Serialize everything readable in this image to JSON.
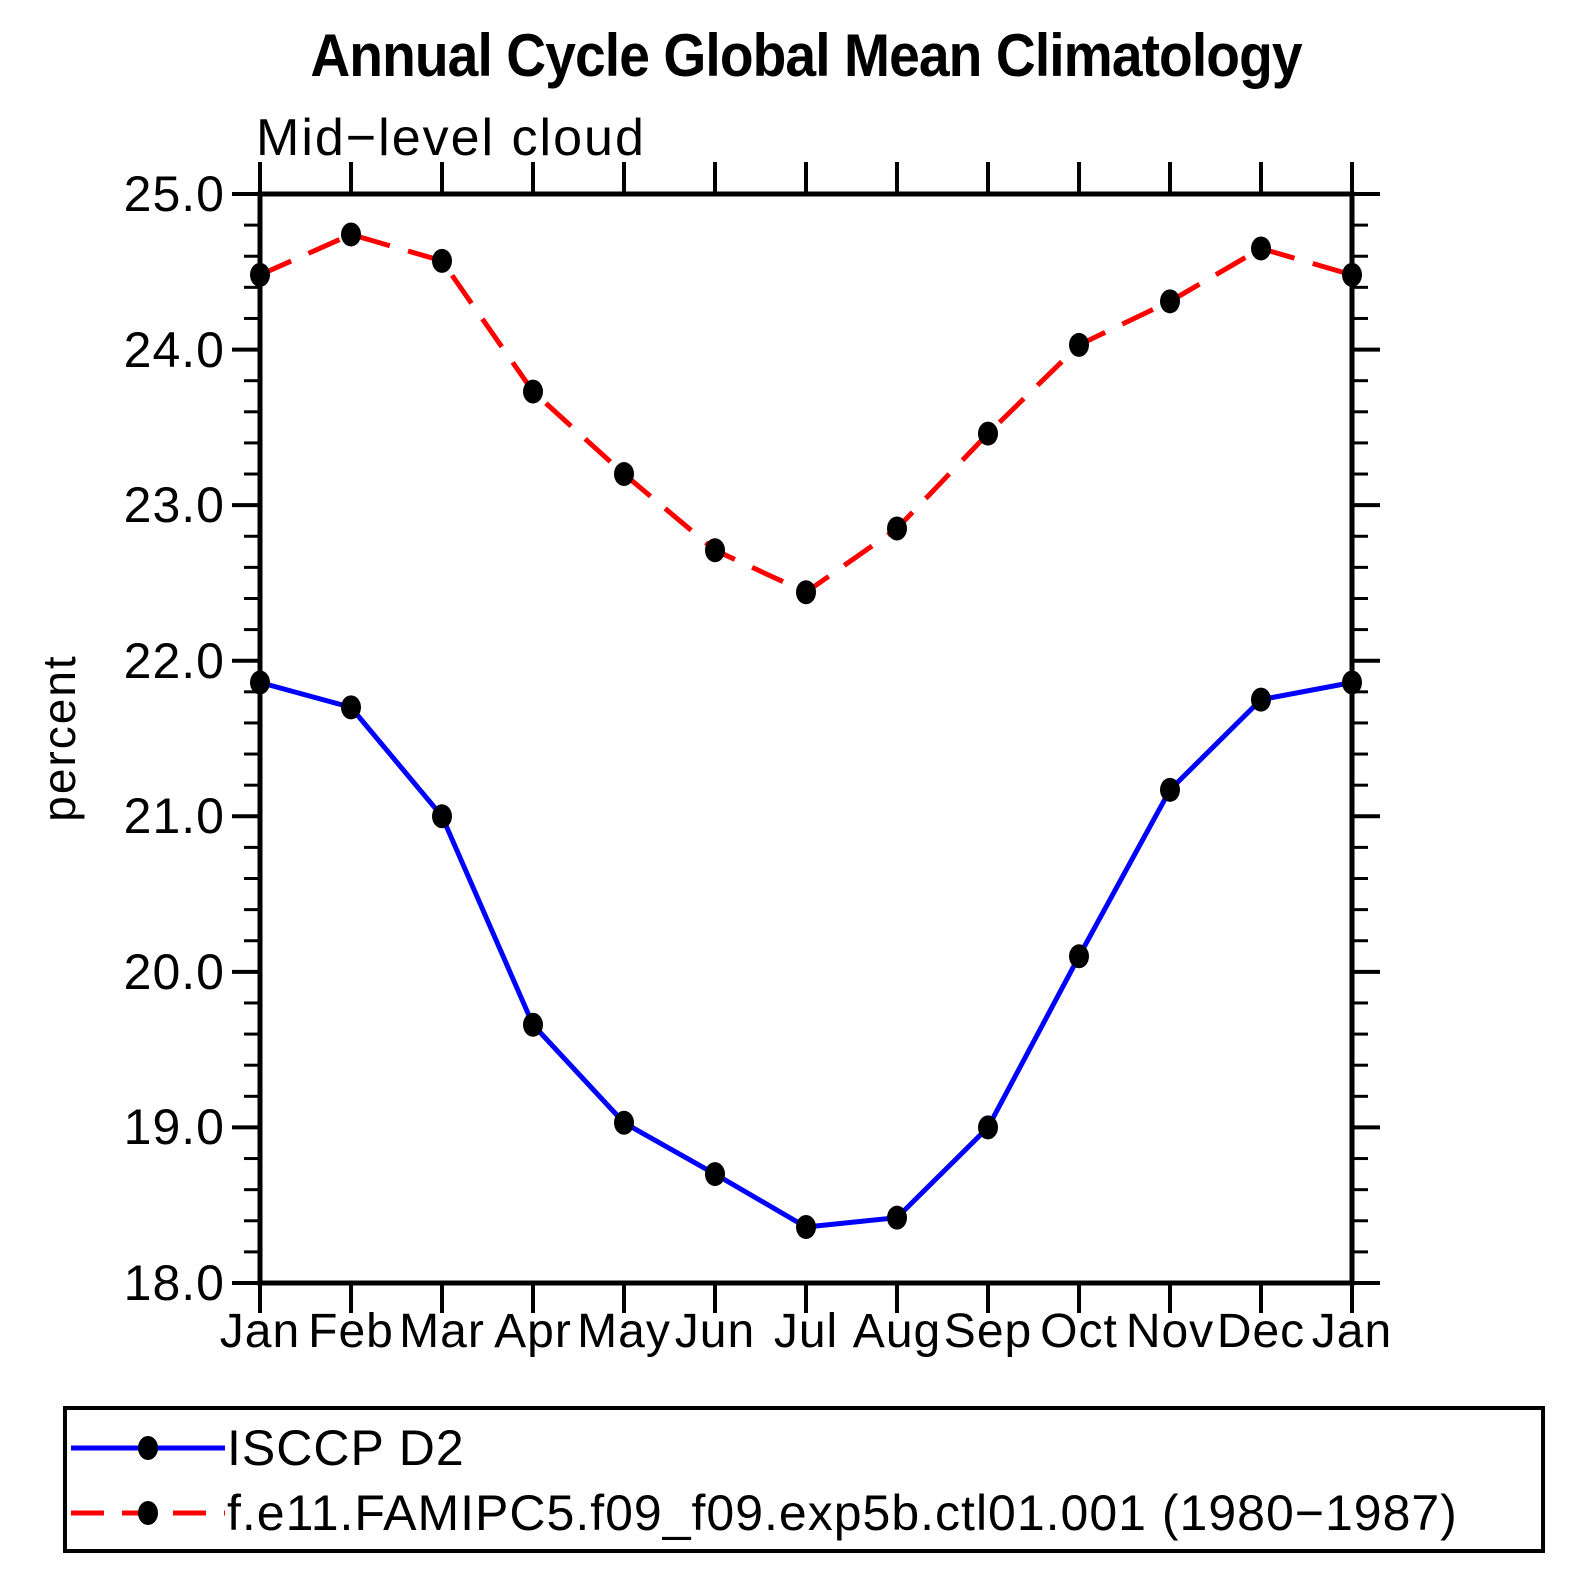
{
  "chart_data": {
    "type": "line",
    "title": "Annual Cycle Global Mean Climatology",
    "subtitle": "Mid−level cloud",
    "xlabel": "",
    "ylabel": "percent",
    "ylim": [
      18.0,
      25.0
    ],
    "y_major_step": 1.0,
    "y_minor_step": 0.2,
    "y_tick_labels": [
      "25.0",
      "24.0",
      "23.0",
      "22.0",
      "21.0",
      "20.0",
      "19.0",
      "18.0"
    ],
    "x_tick_labels": [
      "Jan",
      "Feb",
      "Mar",
      "Apr",
      "May",
      "Jun",
      "Jul",
      "Aug",
      "Sep",
      "Oct",
      "Nov",
      "Dec",
      "Jan"
    ],
    "grid": false,
    "background": "#ffffff",
    "axis_color": "#000000",
    "legend_position": "bottom-left-box",
    "series": [
      {
        "name": "ISCCP D2",
        "color": "#0000ff",
        "style": "solid",
        "marker": "filled-circle",
        "marker_color": "#000000",
        "values": [
          21.86,
          21.7,
          21.0,
          19.66,
          19.03,
          18.7,
          18.36,
          18.42,
          19.0,
          20.1,
          21.17,
          21.75,
          21.86
        ]
      },
      {
        "name": "f.e11.FAMIPC5.f09_f09.exp5b.ctl01.001 (1980−1987)",
        "color": "#ff0000",
        "style": "dashed",
        "marker": "filled-circle",
        "marker_color": "#000000",
        "values": [
          24.48,
          24.74,
          24.57,
          23.73,
          23.2,
          22.71,
          22.44,
          22.85,
          23.46,
          24.03,
          24.31,
          24.65,
          24.48
        ]
      }
    ]
  }
}
